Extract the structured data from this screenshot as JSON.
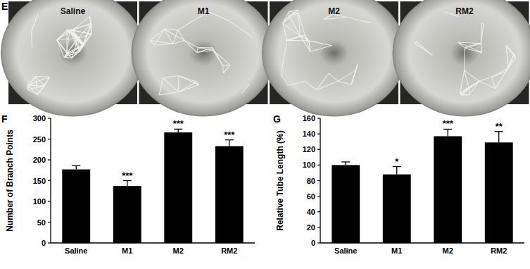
{
  "panel_e": {
    "label": "E",
    "images": [
      "Saline",
      "M1",
      "M2",
      "RM2"
    ]
  },
  "chart_data": [
    {
      "type": "bar",
      "panel_label": "F",
      "y_label": "Number of Branch Points",
      "categories": [
        "Saline",
        "M1",
        "M2",
        "RM2"
      ],
      "values": [
        177,
        137,
        266,
        233
      ],
      "errors": [
        9,
        13,
        8,
        15
      ],
      "annotations": [
        null,
        "***",
        "***",
        "***"
      ],
      "color": "#000000",
      "ylim": [
        0,
        300
      ],
      "yticks": [
        0,
        50,
        100,
        150,
        200,
        250,
        300
      ],
      "grid": false
    },
    {
      "type": "bar",
      "panel_label": "G",
      "y_label": "Relative Tube Length (%)",
      "categories": [
        "Saline",
        "M1",
        "M2",
        "RM2"
      ],
      "values": [
        100,
        88,
        137,
        129
      ],
      "errors": [
        4,
        10,
        9,
        14
      ],
      "annotations": [
        null,
        "*",
        "***",
        "**"
      ],
      "color": "#000000",
      "ylim": [
        0,
        160
      ],
      "yticks": [
        0,
        20,
        40,
        60,
        80,
        100,
        120,
        140,
        160
      ],
      "grid": false
    }
  ]
}
